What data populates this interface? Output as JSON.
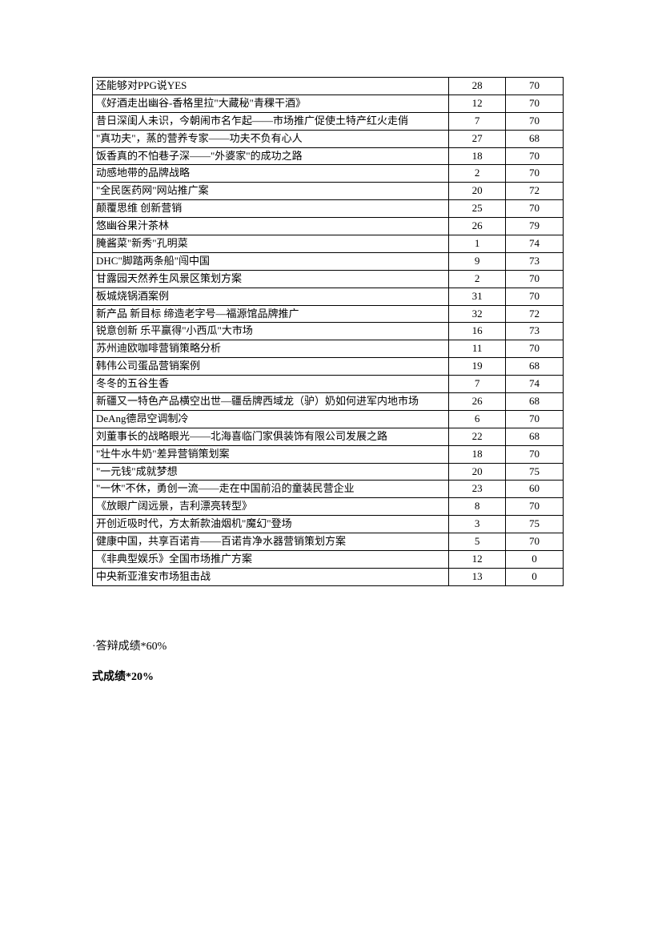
{
  "table": {
    "rows": [
      {
        "title": "还能够对PPG说YES",
        "v1": "28",
        "v2": "70"
      },
      {
        "title": "《好酒走出幽谷-香格里拉\"大藏秘\"青稞干酒》",
        "v1": "12",
        "v2": "70"
      },
      {
        "title": "昔日深闺人未识，今朝闹市名乍起——市场推广促使土特产红火走俏",
        "v1": "7",
        "v2": "70"
      },
      {
        "title": "\"真功夫\"，蒸的营养专家——功夫不负有心人",
        "v1": "27",
        "v2": "68"
      },
      {
        "title": "饭香真的不怕巷子深——\"外婆家\"的成功之路",
        "v1": "18",
        "v2": "70"
      },
      {
        "title": "动感地带的品牌战略",
        "v1": "2",
        "v2": "70"
      },
      {
        "title": "\"全民医药网\"网站推广案",
        "v1": "20",
        "v2": "72"
      },
      {
        "title": "颠覆思维 创新营销",
        "v1": "25",
        "v2": "70"
      },
      {
        "title": "悠幽谷果汁茶林",
        "v1": "26",
        "v2": "79"
      },
      {
        "title": "腌酱菜\"新秀\"孔明菜",
        "v1": "1",
        "v2": "74"
      },
      {
        "title": "DHC\"脚踏两条船\"闯中国",
        "v1": "9",
        "v2": "73"
      },
      {
        "title": "甘露园天然养生风景区策划方案",
        "v1": "2",
        "v2": "70"
      },
      {
        "title": "板城烧锅酒案例",
        "v1": "31",
        "v2": "70"
      },
      {
        "title": "新产品 新目标 缔造老字号—福源馆品牌推广",
        "v1": "32",
        "v2": "72"
      },
      {
        "title": "锐意创新   乐平赢得\"小西瓜\"大市场",
        "v1": "16",
        "v2": "73"
      },
      {
        "title": "苏州迪欧咖啡营销策略分析",
        "v1": "11",
        "v2": "70"
      },
      {
        "title": "韩伟公司蛋品营销案例",
        "v1": "19",
        "v2": "68"
      },
      {
        "title": "冬冬的五谷生香",
        "v1": "7",
        "v2": "74"
      },
      {
        "title": "新疆又一特色产品横空出世—疆岳牌西域龙（驴）奶如何进军内地市场",
        "v1": "26",
        "v2": "68"
      },
      {
        "title": "DeAng德昂空调制冷",
        "v1": "6",
        "v2": "70"
      },
      {
        "title": "刘董事长的战略眼光——北海喜临门家俱装饰有限公司发展之路",
        "v1": "22",
        "v2": "68"
      },
      {
        "title": "\"壮牛水牛奶\"差异营销策划案",
        "v1": "18",
        "v2": "70"
      },
      {
        "title": "\"一元钱\"成就梦想",
        "v1": "20",
        "v2": "75"
      },
      {
        "title": "\"一休\"不休，勇创一流——走在中国前沿的童装民营企业",
        "v1": "23",
        "v2": "60"
      },
      {
        "title": "《放眼广阔远景，吉利漂亮转型》",
        "v1": "8",
        "v2": "70"
      },
      {
        "title": "开创近吸时代，方太新款油烟机\"魔幻\"登场",
        "v1": "3",
        "v2": "75"
      },
      {
        "title": "健康中国，共享百诺肯——百诺肯净水器营销策划方案",
        "v1": "5",
        "v2": "70"
      },
      {
        "title": "《非典型娱乐》全国市场推广方案",
        "v1": "12",
        "v2": "0"
      },
      {
        "title": "中央新亚淮安市场狙击战",
        "v1": "13",
        "v2": "0"
      }
    ]
  },
  "notes": {
    "line1": "·答辩成绩*60%",
    "line2": "式成绩*20%"
  }
}
